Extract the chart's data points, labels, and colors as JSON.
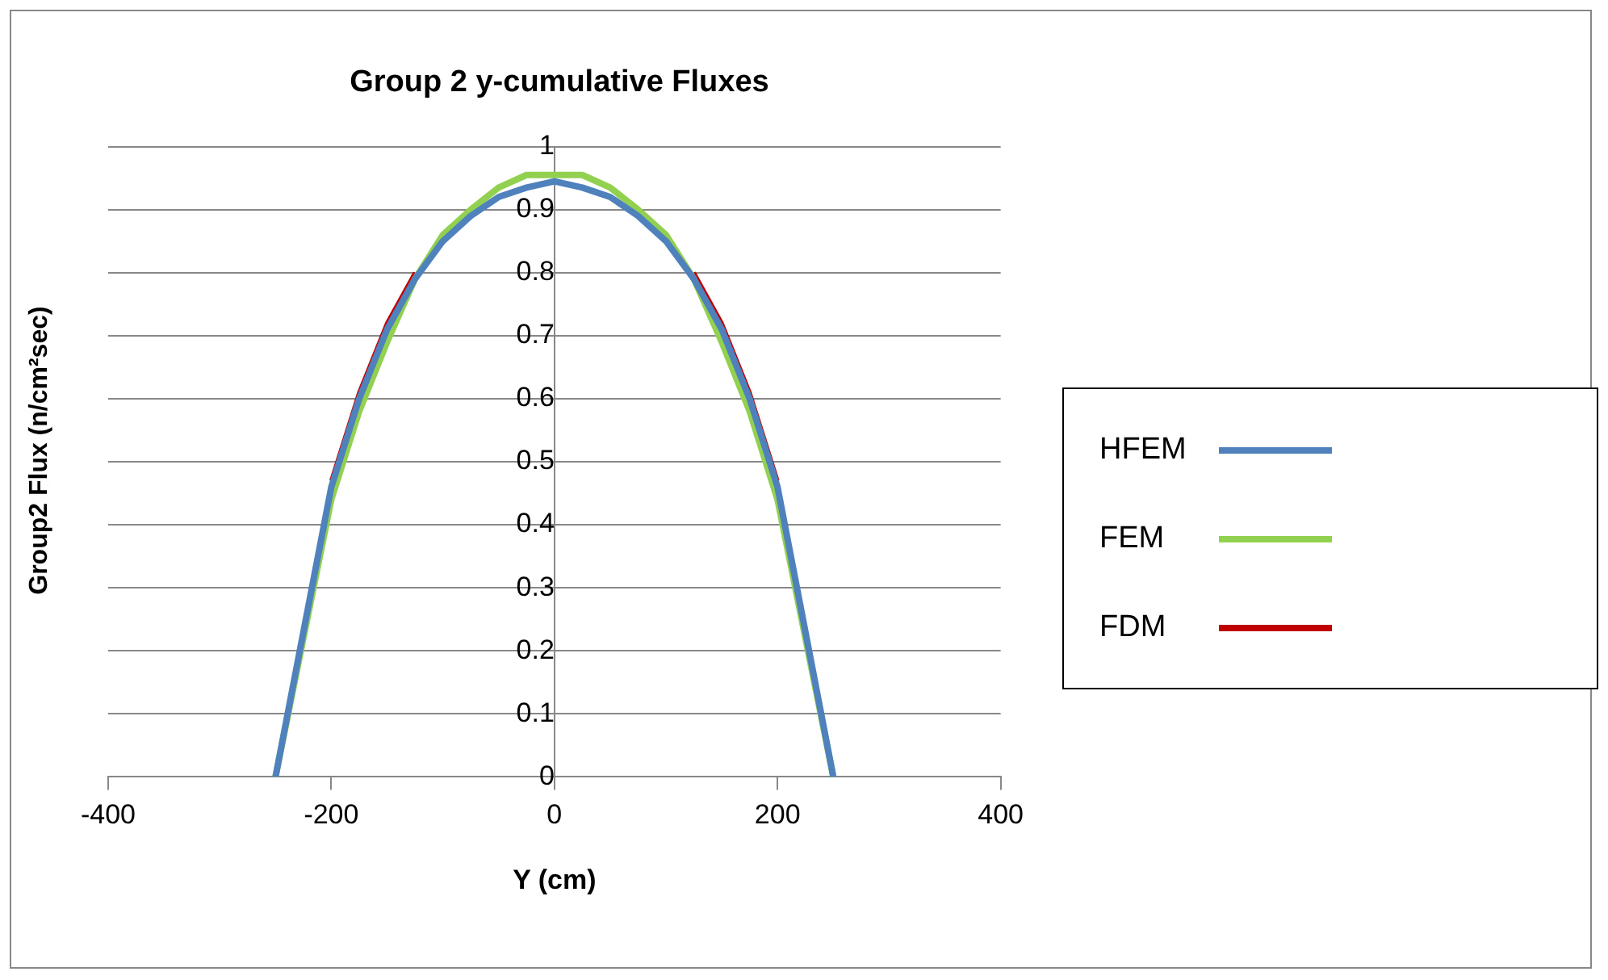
{
  "chart_data": {
    "type": "line",
    "title": "Group 2 y-cumulative Fluxes",
    "xlabel": "Y (cm)",
    "ylabel": "Group2 Flux (n/cm²sec)",
    "x": [
      -250,
      -225,
      -200,
      -175,
      -150,
      -125,
      -100,
      -75,
      -50,
      -25,
      0,
      25,
      50,
      75,
      100,
      125,
      150,
      175,
      200,
      225,
      250
    ],
    "series": [
      {
        "name": "HFEM",
        "color": "#4f81bd",
        "values": [
          0,
          0.23,
          0.46,
          0.6,
          0.71,
          0.79,
          0.85,
          0.89,
          0.92,
          0.935,
          0.945,
          0.935,
          0.92,
          0.89,
          0.85,
          0.79,
          0.71,
          0.6,
          0.46,
          0.23,
          0
        ]
      },
      {
        "name": "FEM",
        "color": "#92d050",
        "values": [
          0,
          0.22,
          0.44,
          0.58,
          0.69,
          0.79,
          0.86,
          0.9,
          0.935,
          0.955,
          0.955,
          0.955,
          0.935,
          0.9,
          0.86,
          0.79,
          0.69,
          0.58,
          0.44,
          0.22,
          0
        ]
      },
      {
        "name": "FDM",
        "color": "#c00000",
        "values": [
          null,
          null,
          0.47,
          0.61,
          0.72,
          0.8,
          null,
          null,
          null,
          null,
          null,
          null,
          null,
          null,
          null,
          0.8,
          0.72,
          0.61,
          0.47,
          null,
          null
        ]
      }
    ],
    "xlim": [
      -400,
      400
    ],
    "xticks": [
      -400,
      -200,
      0,
      200,
      400
    ],
    "ylim": [
      0,
      1
    ],
    "yticks": [
      0,
      0.1,
      0.2,
      0.3,
      0.4,
      0.5,
      0.6,
      0.7,
      0.8,
      0.9,
      1
    ],
    "grid": "y",
    "legend": "right",
    "marker": "none",
    "line_style": "solid"
  }
}
